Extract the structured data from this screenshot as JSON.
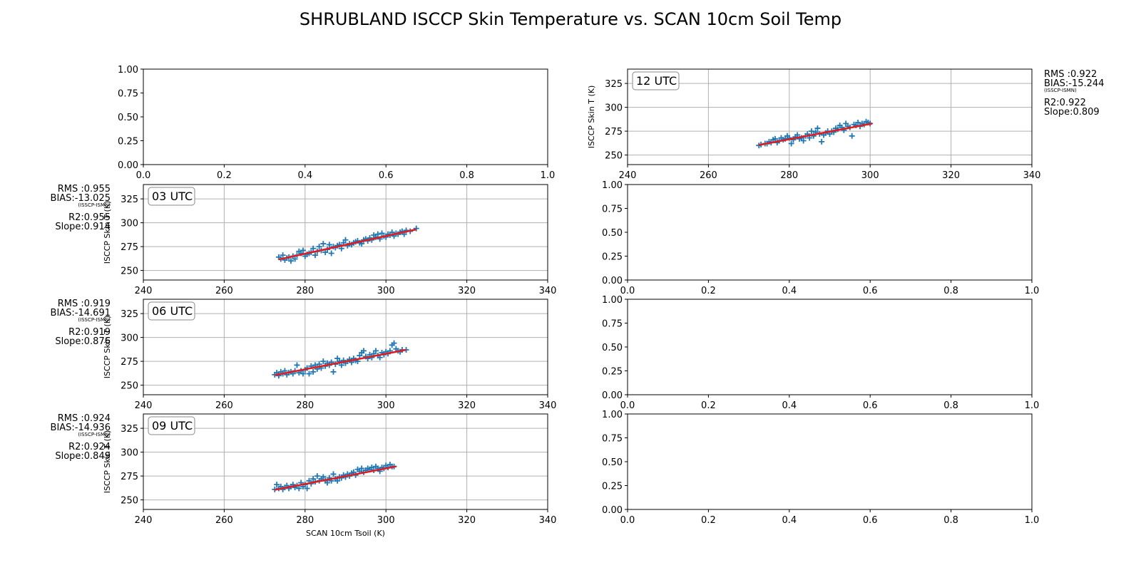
{
  "title": "SHRUBLAND ISCCP Skin Temperature vs. SCAN 10cm Soil Temp",
  "colors": {
    "points": "#1f77b4",
    "fit": "#e41a1c",
    "grid": "#b0b0b0"
  },
  "chart_data": [
    {
      "id": "empty-00",
      "type": "scatter",
      "empty": true,
      "xlim": [
        0,
        1
      ],
      "ylim": [
        0,
        1
      ],
      "xticks": [
        "0.0",
        "0.2",
        "0.4",
        "0.6",
        "0.8",
        "1.0"
      ],
      "yticks": [
        "0.00",
        "0.25",
        "0.50",
        "0.75",
        "1.00"
      ]
    },
    {
      "id": "utc-12",
      "type": "scatter",
      "empty": false,
      "label": "12 UTC",
      "xlim": [
        240,
        340
      ],
      "ylim": [
        240,
        340
      ],
      "grid": true,
      "xticks": [
        "240",
        "260",
        "280",
        "300",
        "320",
        "340"
      ],
      "yticks": [
        "250",
        "275",
        "300",
        "325"
      ],
      "ylabel": "ISCCP Skin T (K)",
      "stats": {
        "rms": "RMS :0.922",
        "bias": "BIAS:-15.244",
        "bias_note": "(ISSCP-ISMN)",
        "r2": "R2:0.922",
        "slope": "Slope:0.809"
      },
      "stats_side": "right",
      "x_range": [
        272.5,
        300.5
      ],
      "fit": {
        "x": [
          272.5,
          300.5
        ],
        "y": [
          260.5,
          283.0
        ]
      },
      "points": [
        [
          272.5,
          260
        ],
        [
          273,
          261
        ],
        [
          274,
          262
        ],
        [
          274.5,
          262
        ],
        [
          275,
          264
        ],
        [
          275.5,
          263
        ],
        [
          276,
          266
        ],
        [
          276.5,
          267
        ],
        [
          277,
          263
        ],
        [
          277.5,
          265
        ],
        [
          278,
          268
        ],
        [
          278.5,
          266
        ],
        [
          279,
          267
        ],
        [
          279.5,
          270
        ],
        [
          280,
          268
        ],
        [
          280.5,
          262
        ],
        [
          281,
          266
        ],
        [
          281.5,
          269
        ],
        [
          282,
          271
        ],
        [
          282.5,
          267
        ],
        [
          283,
          268
        ],
        [
          283.5,
          265
        ],
        [
          284,
          270
        ],
        [
          284.5,
          272
        ],
        [
          285,
          268
        ],
        [
          285.5,
          275
        ],
        [
          286,
          270
        ],
        [
          286.5,
          274
        ],
        [
          287,
          278
        ],
        [
          287.5,
          272
        ],
        [
          288,
          264
        ],
        [
          288.5,
          271
        ],
        [
          289,
          273
        ],
        [
          289.5,
          275
        ],
        [
          290,
          272
        ],
        [
          290.5,
          275
        ],
        [
          291,
          274
        ],
        [
          291.5,
          278
        ],
        [
          292,
          277
        ],
        [
          292.5,
          281
        ],
        [
          293,
          279
        ],
        [
          293.5,
          276
        ],
        [
          294,
          283
        ],
        [
          294.5,
          280
        ],
        [
          295,
          279
        ],
        [
          295.5,
          270
        ],
        [
          296,
          282
        ],
        [
          296.5,
          281
        ],
        [
          297,
          284
        ],
        [
          297.5,
          280
        ],
        [
          298,
          283
        ],
        [
          298.5,
          282
        ],
        [
          299,
          285
        ],
        [
          299.5,
          284
        ],
        [
          300,
          283
        ]
      ]
    },
    {
      "id": "utc-03",
      "type": "scatter",
      "empty": false,
      "label": "03 UTC",
      "xlim": [
        240,
        340
      ],
      "ylim": [
        240,
        340
      ],
      "grid": true,
      "xticks": [
        "240",
        "260",
        "280",
        "300",
        "320",
        "340"
      ],
      "yticks": [
        "250",
        "275",
        "300",
        "325"
      ],
      "ylabel": "ISCCP Skin T (K)",
      "stats": {
        "rms": "RMS :0.955",
        "bias": "BIAS:-13.025",
        "bias_note": "(ISSCP-ISMN)",
        "r2": "R2:0.955",
        "slope": "Slope:0.914"
      },
      "stats_side": "left",
      "fit": {
        "x": [
          273.5,
          307.5
        ],
        "y": [
          261.5,
          293.0
        ]
      },
      "points": [
        [
          273.5,
          264
        ],
        [
          274,
          262
        ],
        [
          274.5,
          266
        ],
        [
          275,
          261
        ],
        [
          275.5,
          263
        ],
        [
          276,
          264
        ],
        [
          276.5,
          260
        ],
        [
          277,
          265
        ],
        [
          277.5,
          262
        ],
        [
          278,
          266
        ],
        [
          278.5,
          270
        ],
        [
          279,
          268
        ],
        [
          279.5,
          271
        ],
        [
          280,
          265
        ],
        [
          280.5,
          267
        ],
        [
          281,
          268
        ],
        [
          281.5,
          269
        ],
        [
          282,
          273
        ],
        [
          282.5,
          266
        ],
        [
          283,
          270
        ],
        [
          283.5,
          275
        ],
        [
          284,
          271
        ],
        [
          284.5,
          278
        ],
        [
          285,
          269
        ],
        [
          285.5,
          272
        ],
        [
          286,
          277
        ],
        [
          286.5,
          268
        ],
        [
          287,
          275
        ],
        [
          287.5,
          274
        ],
        [
          288,
          276
        ],
        [
          288.5,
          277
        ],
        [
          289,
          273
        ],
        [
          289.5,
          279
        ],
        [
          290,
          282
        ],
        [
          290.5,
          276
        ],
        [
          291,
          278
        ],
        [
          291.5,
          277
        ],
        [
          292,
          279
        ],
        [
          292.5,
          280
        ],
        [
          293,
          281
        ],
        [
          293.5,
          279
        ],
        [
          294,
          278
        ],
        [
          294.5,
          282
        ],
        [
          295,
          283
        ],
        [
          295.5,
          281
        ],
        [
          296,
          284
        ],
        [
          296.5,
          282
        ],
        [
          297,
          287
        ],
        [
          297.5,
          285
        ],
        [
          298,
          288
        ],
        [
          298.5,
          283
        ],
        [
          299,
          289
        ],
        [
          299.5,
          286
        ],
        [
          300,
          285
        ],
        [
          300.5,
          288
        ],
        [
          301,
          287
        ],
        [
          301.5,
          290
        ],
        [
          302,
          286
        ],
        [
          302.5,
          289
        ],
        [
          303,
          288
        ],
        [
          303.5,
          290
        ],
        [
          304,
          291
        ],
        [
          304.5,
          288
        ],
        [
          305,
          292
        ],
        [
          306,
          291
        ],
        [
          307.5,
          294
        ]
      ]
    },
    {
      "id": "empty-11",
      "type": "scatter",
      "empty": true,
      "xlim": [
        0,
        1
      ],
      "ylim": [
        0,
        1
      ],
      "xticks": [
        "0.0",
        "0.2",
        "0.4",
        "0.6",
        "0.8",
        "1.0"
      ],
      "yticks": [
        "0.00",
        "0.25",
        "0.50",
        "0.75",
        "1.00"
      ]
    },
    {
      "id": "utc-06",
      "type": "scatter",
      "empty": false,
      "label": "06 UTC",
      "xlim": [
        240,
        340
      ],
      "ylim": [
        240,
        340
      ],
      "grid": true,
      "xticks": [
        "240",
        "260",
        "280",
        "300",
        "320",
        "340"
      ],
      "yticks": [
        "250",
        "275",
        "300",
        "325"
      ],
      "ylabel": "ISCCP Skin T (K)",
      "stats": {
        "rms": "RMS :0.919",
        "bias": "BIAS:-14.691",
        "bias_note": "(ISSCP-ISMN)",
        "r2": "R2:0.919",
        "slope": "Slope:0.876"
      },
      "stats_side": "left",
      "fit": {
        "x": [
          272.5,
          305.0
        ],
        "y": [
          260.5,
          287.0
        ]
      },
      "points": [
        [
          272.5,
          261
        ],
        [
          273,
          263
        ],
        [
          273.5,
          260
        ],
        [
          274,
          264
        ],
        [
          274.5,
          262
        ],
        [
          275,
          265
        ],
        [
          275.5,
          261
        ],
        [
          276,
          263
        ],
        [
          276.5,
          264
        ],
        [
          277,
          262
        ],
        [
          277.5,
          265
        ],
        [
          278,
          271
        ],
        [
          278.5,
          263
        ],
        [
          279,
          265
        ],
        [
          279.5,
          262
        ],
        [
          280,
          266
        ],
        [
          280.5,
          268
        ],
        [
          281,
          262
        ],
        [
          281.5,
          270
        ],
        [
          282,
          264
        ],
        [
          282.5,
          271
        ],
        [
          283,
          267
        ],
        [
          283.5,
          272
        ],
        [
          284,
          268
        ],
        [
          284.5,
          275
        ],
        [
          285,
          270
        ],
        [
          285.5,
          273
        ],
        [
          286,
          271
        ],
        [
          286.5,
          274
        ],
        [
          287,
          264
        ],
        [
          287.5,
          272
        ],
        [
          288,
          278
        ],
        [
          288.5,
          275
        ],
        [
          289,
          271
        ],
        [
          289.5,
          276
        ],
        [
          290,
          273
        ],
        [
          290.5,
          275
        ],
        [
          291,
          277
        ],
        [
          291.5,
          274
        ],
        [
          292,
          278
        ],
        [
          292.5,
          276
        ],
        [
          293,
          275
        ],
        [
          293.5,
          281
        ],
        [
          294,
          284
        ],
        [
          294.5,
          286
        ],
        [
          295,
          280
        ],
        [
          295.5,
          278
        ],
        [
          296,
          282
        ],
        [
          296.5,
          279
        ],
        [
          297,
          283
        ],
        [
          297.5,
          286
        ],
        [
          298,
          281
        ],
        [
          298.5,
          279
        ],
        [
          299,
          284
        ],
        [
          299.5,
          282
        ],
        [
          300,
          285
        ],
        [
          300.5,
          283
        ],
        [
          301,
          286
        ],
        [
          301.5,
          292
        ],
        [
          302,
          294
        ],
        [
          302.5,
          288
        ],
        [
          303,
          286
        ],
        [
          303.5,
          285
        ],
        [
          304,
          287
        ],
        [
          305,
          287
        ]
      ]
    },
    {
      "id": "empty-21",
      "type": "scatter",
      "empty": true,
      "xlim": [
        0,
        1
      ],
      "ylim": [
        0,
        1
      ],
      "xticks": [
        "0.0",
        "0.2",
        "0.4",
        "0.6",
        "0.8",
        "1.0"
      ],
      "yticks": [
        "0.00",
        "0.25",
        "0.50",
        "0.75",
        "1.00"
      ]
    },
    {
      "id": "utc-09",
      "type": "scatter",
      "empty": false,
      "label": "09 UTC",
      "xlim": [
        240,
        340
      ],
      "ylim": [
        240,
        340
      ],
      "grid": true,
      "xticks": [
        "240",
        "260",
        "280",
        "300",
        "320",
        "340"
      ],
      "yticks": [
        "250",
        "275",
        "300",
        "325"
      ],
      "ylabel": "ISCCP Skin T (K)",
      "xlabel": "SCAN 10cm Tsoil (K)",
      "stats": {
        "rms": "RMS :0.924",
        "bias": "BIAS:-14.936",
        "bias_note": "(ISSCP-ISMN)",
        "r2": "R2:0.924",
        "slope": "Slope:0.849"
      },
      "stats_side": "left",
      "fit": {
        "x": [
          272.5,
          302.5
        ],
        "y": [
          260.5,
          285.0
        ]
      },
      "points": [
        [
          272.5,
          261
        ],
        [
          273,
          266
        ],
        [
          273.5,
          262
        ],
        [
          274,
          264
        ],
        [
          274.5,
          261
        ],
        [
          275,
          263
        ],
        [
          275.5,
          265
        ],
        [
          276,
          262
        ],
        [
          276.5,
          264
        ],
        [
          277,
          266
        ],
        [
          277.5,
          263
        ],
        [
          278,
          265
        ],
        [
          278.5,
          262
        ],
        [
          279,
          268
        ],
        [
          279.5,
          264
        ],
        [
          280,
          266
        ],
        [
          280.5,
          262
        ],
        [
          281,
          270
        ],
        [
          281.5,
          267
        ],
        [
          282,
          272
        ],
        [
          282.5,
          269
        ],
        [
          283,
          275
        ],
        [
          283.5,
          270
        ],
        [
          284,
          272
        ],
        [
          284.5,
          274
        ],
        [
          285,
          270
        ],
        [
          285.5,
          268
        ],
        [
          286,
          273
        ],
        [
          286.5,
          270
        ],
        [
          287,
          277
        ],
        [
          287.5,
          272
        ],
        [
          288,
          270
        ],
        [
          288.5,
          274
        ],
        [
          289,
          273
        ],
        [
          289.5,
          276
        ],
        [
          290,
          274
        ],
        [
          290.5,
          277
        ],
        [
          291,
          275
        ],
        [
          291.5,
          278
        ],
        [
          292,
          279
        ],
        [
          292.5,
          276
        ],
        [
          293,
          282
        ],
        [
          293.5,
          280
        ],
        [
          294,
          283
        ],
        [
          294.5,
          279
        ],
        [
          295,
          281
        ],
        [
          295.5,
          283
        ],
        [
          296,
          282
        ],
        [
          296.5,
          284
        ],
        [
          297,
          281
        ],
        [
          297.5,
          285
        ],
        [
          298,
          283
        ],
        [
          298.5,
          280
        ],
        [
          299,
          284
        ],
        [
          299.5,
          283
        ],
        [
          300,
          286
        ],
        [
          300.5,
          284
        ],
        [
          301,
          287
        ],
        [
          301.5,
          285
        ],
        [
          302,
          285
        ]
      ]
    },
    {
      "id": "empty-31",
      "type": "scatter",
      "empty": true,
      "xlim": [
        0,
        1
      ],
      "ylim": [
        0,
        1
      ],
      "xticks": [
        "0.0",
        "0.2",
        "0.4",
        "0.6",
        "0.8",
        "1.0"
      ],
      "yticks": [
        "0.00",
        "0.25",
        "0.50",
        "0.75",
        "1.00"
      ]
    }
  ]
}
